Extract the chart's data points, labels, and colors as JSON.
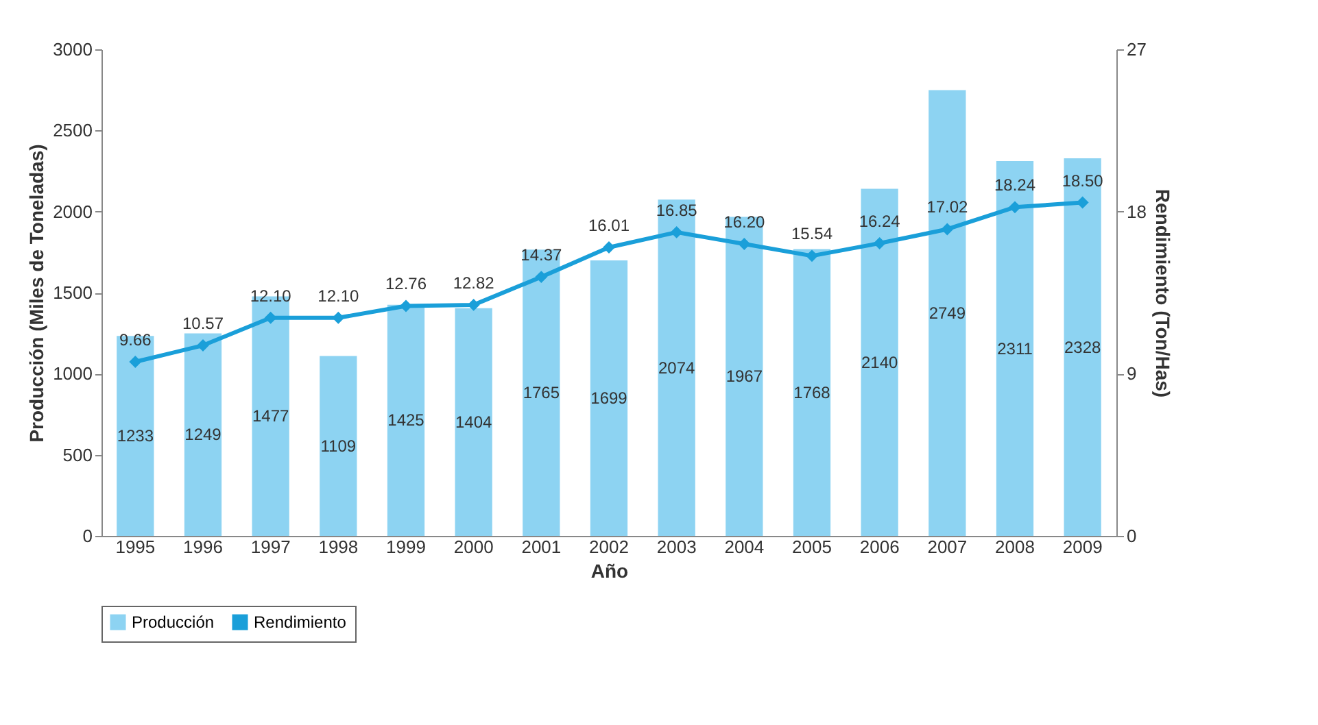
{
  "chart_data": {
    "type": "bar",
    "xlabel": "Año",
    "ylabel": "Producción (Miles de Toneladas)",
    "y2label": "Rendimiento (Ton/Has)",
    "categories": [
      "1995",
      "1996",
      "1997",
      "1998",
      "1999",
      "2000",
      "2001",
      "2002",
      "2003",
      "2004",
      "2005",
      "2006",
      "2007",
      "2008",
      "2009"
    ],
    "series": [
      {
        "name": "Producción",
        "color": "#8dd3f2",
        "values": [
          1233,
          1249,
          1477,
          1109,
          1425,
          1404,
          1765,
          1699,
          2074,
          1967,
          1768,
          2140,
          2749,
          2311,
          2328
        ]
      },
      {
        "name": "Rendimiento",
        "type": "line",
        "axis": "y2",
        "color": "#1a9fd9",
        "values": [
          9.66,
          10.57,
          12.1,
          12.1,
          12.76,
          12.82,
          14.37,
          16.01,
          16.85,
          16.2,
          15.54,
          16.24,
          17.02,
          18.24,
          18.5
        ],
        "value_labels": [
          "9.66",
          "10.57",
          "12.10",
          "12.10",
          "12.76",
          "12.82",
          "14.37",
          "16.01",
          "16.85",
          "16.20",
          "15.54",
          "16.24",
          "17.02",
          "18.24",
          "18.50"
        ]
      }
    ],
    "ylim": [
      0,
      3000
    ],
    "yticks": [
      0,
      500,
      1000,
      1500,
      2000,
      2500,
      3000
    ],
    "y2lim": [
      0,
      27
    ],
    "y2ticks": [
      0,
      9,
      18,
      27
    ],
    "data_labels": true,
    "legend": "bottom",
    "marker": "diamond",
    "grid": false
  }
}
